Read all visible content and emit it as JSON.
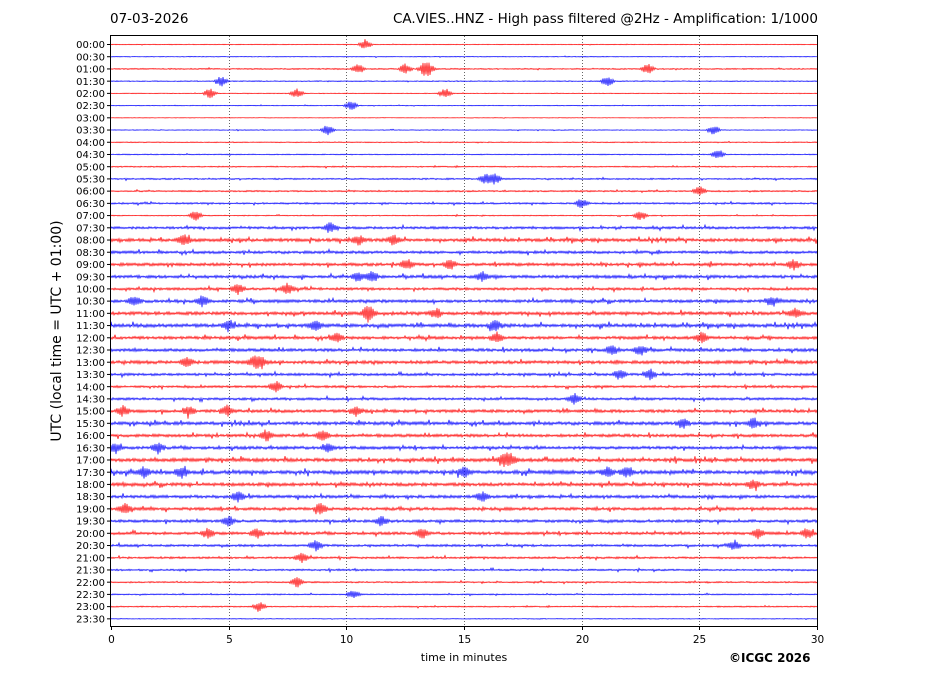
{
  "header": {
    "date": "07-03-2026",
    "title": "CA.VIES..HNZ - High pass filtered @2Hz - Amplification: 1/1000"
  },
  "footer": {
    "copyright": "©ICGC 2026"
  },
  "chart_data": {
    "type": "line",
    "title": "CA.VIES..HNZ - High pass filtered @2Hz - Amplification: 1/1000",
    "xlabel": "time in minutes",
    "ylabel": "UTC (local time = UTC + 01:00)",
    "xlim": [
      0,
      30
    ],
    "x_ticks": [
      "0",
      "5",
      "10",
      "15",
      "20",
      "25",
      "30"
    ],
    "grid": "vertical dotted lines every 5 minutes",
    "colors": {
      "a": "#ff0000",
      "b": "#0000ff"
    },
    "rows": [
      "00:00",
      "00:30",
      "01:00",
      "01:30",
      "02:00",
      "02:30",
      "03:00",
      "03:30",
      "04:00",
      "04:30",
      "05:00",
      "05:30",
      "06:00",
      "06:30",
      "07:00",
      "07:30",
      "08:00",
      "08:30",
      "09:00",
      "09:30",
      "10:00",
      "10:30",
      "11:00",
      "11:30",
      "12:00",
      "12:30",
      "13:00",
      "13:30",
      "14:00",
      "14:30",
      "15:00",
      "15:30",
      "16:00",
      "16:30",
      "17:00",
      "17:30",
      "18:00",
      "18:30",
      "19:00",
      "19:30",
      "20:00",
      "20:30",
      "21:00",
      "21:30",
      "22:00",
      "22:30",
      "23:00",
      "23:30"
    ],
    "trace_colors": [
      "red",
      "blue",
      "red",
      "blue",
      "red",
      "blue",
      "red",
      "blue",
      "red",
      "blue",
      "red",
      "blue",
      "red",
      "blue",
      "red",
      "blue",
      "red",
      "blue",
      "red",
      "blue",
      "red",
      "blue",
      "red",
      "blue",
      "red",
      "blue",
      "red",
      "blue",
      "red",
      "blue",
      "red",
      "blue",
      "red",
      "blue",
      "red",
      "blue",
      "red",
      "blue",
      "red",
      "blue",
      "red",
      "blue",
      "red",
      "blue",
      "red",
      "blue",
      "red",
      "blue"
    ],
    "noise_level": [
      0.3,
      0.3,
      0.5,
      0.4,
      0.3,
      0.3,
      0.2,
      0.3,
      0.4,
      0.4,
      0.5,
      0.6,
      0.6,
      0.7,
      0.4,
      1.0,
      1.3,
      1.1,
      1.2,
      1.2,
      1.0,
      1.2,
      1.3,
      1.4,
      1.2,
      1.2,
      1.3,
      1.0,
      0.9,
      1.0,
      1.2,
      1.3,
      1.2,
      1.2,
      1.4,
      1.5,
      1.3,
      1.2,
      1.2,
      1.1,
      1.1,
      0.9,
      0.8,
      0.7,
      0.6,
      0.5,
      0.5,
      0.3
    ],
    "events_minutes": [
      [
        10.8
      ],
      [],
      [
        10.5,
        12.5,
        13.3,
        13.5,
        22.8
      ],
      [
        4.7,
        21.1
      ],
      [
        4.2,
        7.9,
        14.2
      ],
      [
        10.2
      ],
      [],
      [
        9.2,
        25.6
      ],
      [],
      [
        25.8
      ],
      [],
      [
        15.9,
        16.3
      ],
      [
        25.0
      ],
      [
        20.0
      ],
      [
        3.6,
        22.5
      ],
      [
        9.3
      ],
      [
        3.1,
        10.5,
        12.0
      ],
      [],
      [
        12.6,
        14.4,
        29.0
      ],
      [
        10.5,
        11.1,
        15.8
      ],
      [
        5.4,
        7.5
      ],
      [
        1.0,
        3.9,
        28.1
      ],
      [
        10.9,
        11.0,
        13.8,
        29.1
      ],
      [
        5.0,
        8.7,
        16.3
      ],
      [
        9.6,
        16.4,
        25.1
      ],
      [
        21.3,
        22.5
      ],
      [
        3.2,
        6.1,
        6.4
      ],
      [
        21.6,
        22.9
      ],
      [
        7.0
      ],
      [
        19.7
      ],
      [
        0.5,
        3.3,
        4.9,
        10.4
      ],
      [
        24.3,
        27.3
      ],
      [
        6.6,
        9.0
      ],
      [
        0.2,
        2.0,
        9.2
      ],
      [
        16.7,
        17.0
      ],
      [
        1.4,
        3.0,
        15.0,
        21.1,
        21.9
      ],
      [
        27.3
      ],
      [
        5.4,
        15.8
      ],
      [
        0.6,
        8.9
      ],
      [
        5.0,
        11.5
      ],
      [
        4.1,
        6.2,
        13.2,
        27.5,
        29.6
      ],
      [
        8.7,
        26.5
      ],
      [
        8.1
      ],
      [],
      [
        7.9
      ],
      [
        10.3
      ],
      [
        6.3
      ],
      []
    ]
  }
}
